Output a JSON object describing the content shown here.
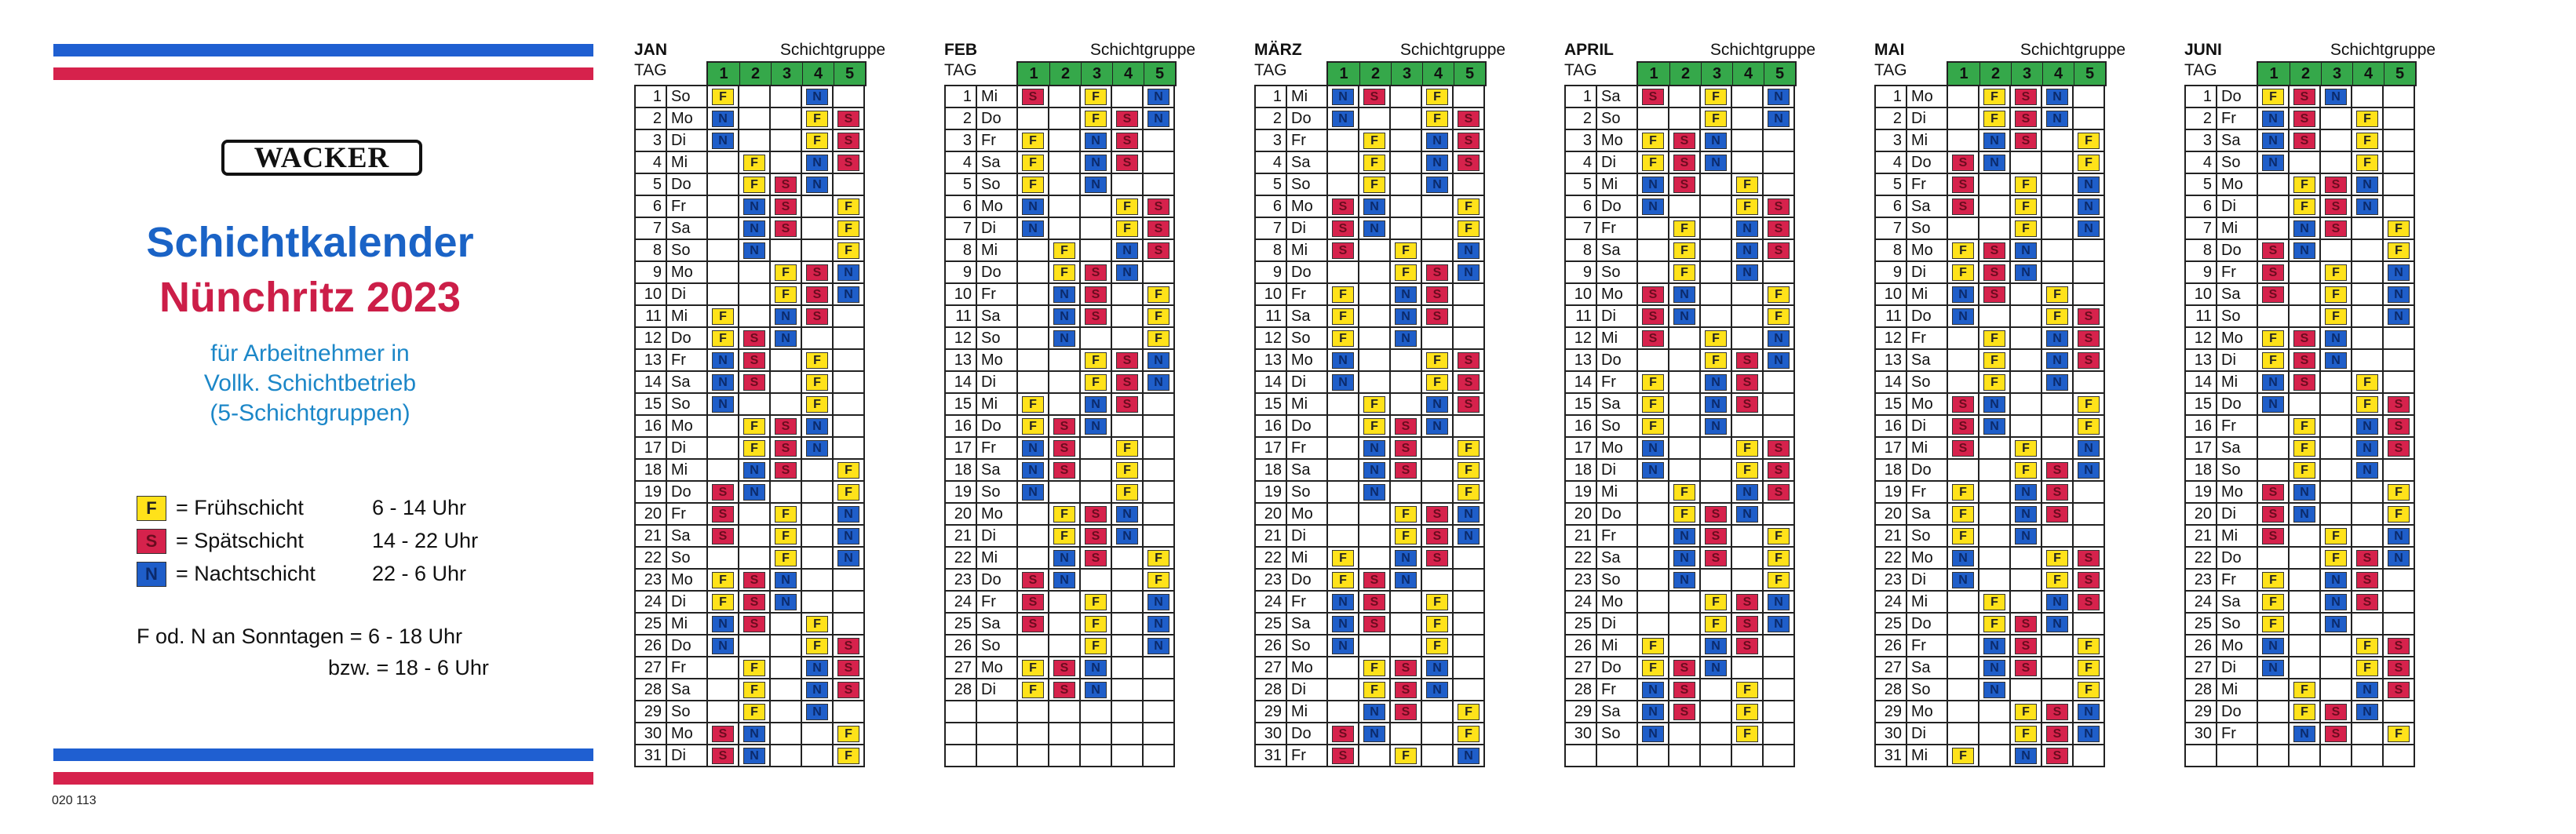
{
  "info": {
    "logo": "WACKER",
    "title_line1": "Schichtkalender",
    "title_line2": "Nünchritz 2023",
    "subtitle_lines": [
      "für Arbeitnehmer in",
      "Vollk. Schichtbetrieb",
      "(5-Schichtgruppen)"
    ],
    "legend": [
      {
        "code": "F",
        "label": "= Frühschicht",
        "time": "6 - 14 Uhr"
      },
      {
        "code": "S",
        "label": "= Spätschicht",
        "time": "14 - 22 Uhr"
      },
      {
        "code": "N",
        "label": "= Nachtschicht",
        "time": "22 -  6 Uhr"
      }
    ],
    "note_line1": "F od. N an Sonntagen = 6 - 18 Uhr",
    "note_line2": "bzw. = 18 - 6 Uhr",
    "code": "020 113"
  },
  "colors": {
    "F": "#ffe21a",
    "S": "#d6224c",
    "N": "#1f5ec9",
    "group_header": "#35a84a",
    "stripe_blue": "#1f5fd1",
    "stripe_red": "#d6224c"
  },
  "table_labels": {
    "tag": "TAG",
    "group": "Schichtgruppe",
    "group_numbers": [
      "1",
      "2",
      "3",
      "4",
      "5"
    ]
  },
  "months": [
    {
      "name": "JAN",
      "days": [
        {
          "d": "1",
          "wd": "So",
          "sh": "F--N-"
        },
        {
          "d": "2",
          "wd": "Mo",
          "sh": "N--FS"
        },
        {
          "d": "3",
          "wd": "Di",
          "sh": "N--FS"
        },
        {
          "d": "4",
          "wd": "Mi",
          "sh": "-F-NS"
        },
        {
          "d": "5",
          "wd": "Do",
          "sh": "-FSN-"
        },
        {
          "d": "6",
          "wd": "Fr",
          "sh": "-NS-F"
        },
        {
          "d": "7",
          "wd": "Sa",
          "sh": "-NS-F"
        },
        {
          "d": "8",
          "wd": "So",
          "sh": "-N--F"
        },
        {
          "d": "9",
          "wd": "Mo",
          "sh": "--FSN"
        },
        {
          "d": "10",
          "wd": "Di",
          "sh": "--FSN"
        },
        {
          "d": "11",
          "wd": "Mi",
          "sh": "F-NS-"
        },
        {
          "d": "12",
          "wd": "Do",
          "sh": "FSN--"
        },
        {
          "d": "13",
          "wd": "Fr",
          "sh": "NS-F-"
        },
        {
          "d": "14",
          "wd": "Sa",
          "sh": "NS-F-"
        },
        {
          "d": "15",
          "wd": "So",
          "sh": "N--F-"
        },
        {
          "d": "16",
          "wd": "Mo",
          "sh": "-FSN-"
        },
        {
          "d": "17",
          "wd": "Di",
          "sh": "-FSN-"
        },
        {
          "d": "18",
          "wd": "Mi",
          "sh": "-NS-F"
        },
        {
          "d": "19",
          "wd": "Do",
          "sh": "SN--F"
        },
        {
          "d": "20",
          "wd": "Fr",
          "sh": "S-F-N"
        },
        {
          "d": "21",
          "wd": "Sa",
          "sh": "S-F-N"
        },
        {
          "d": "22",
          "wd": "So",
          "sh": "--F-N"
        },
        {
          "d": "23",
          "wd": "Mo",
          "sh": "FSN--"
        },
        {
          "d": "24",
          "wd": "Di",
          "sh": "FSN--"
        },
        {
          "d": "25",
          "wd": "Mi",
          "sh": "NS-F-"
        },
        {
          "d": "26",
          "wd": "Do",
          "sh": "N--FS"
        },
        {
          "d": "27",
          "wd": "Fr",
          "sh": "-F-NS"
        },
        {
          "d": "28",
          "wd": "Sa",
          "sh": "-F-NS"
        },
        {
          "d": "29",
          "wd": "So",
          "sh": "-F-N-"
        },
        {
          "d": "30",
          "wd": "Mo",
          "sh": "SN--F"
        },
        {
          "d": "31",
          "wd": "Di",
          "sh": "SN--F"
        }
      ]
    },
    {
      "name": "FEB",
      "days": [
        {
          "d": "1",
          "wd": "Mi",
          "sh": "S-F-N"
        },
        {
          "d": "2",
          "wd": "Do",
          "sh": "--FSN"
        },
        {
          "d": "3",
          "wd": "Fr",
          "sh": "F-NS-"
        },
        {
          "d": "4",
          "wd": "Sa",
          "sh": "F-NS-"
        },
        {
          "d": "5",
          "wd": "So",
          "sh": "F-N--"
        },
        {
          "d": "6",
          "wd": "Mo",
          "sh": "N--FS"
        },
        {
          "d": "7",
          "wd": "Di",
          "sh": "N--FS"
        },
        {
          "d": "8",
          "wd": "Mi",
          "sh": "-F-NS"
        },
        {
          "d": "9",
          "wd": "Do",
          "sh": "-FSN-"
        },
        {
          "d": "10",
          "wd": "Fr",
          "sh": "-NS-F"
        },
        {
          "d": "11",
          "wd": "Sa",
          "sh": "-NS-F"
        },
        {
          "d": "12",
          "wd": "So",
          "sh": "-N--F"
        },
        {
          "d": "13",
          "wd": "Mo",
          "sh": "--FSN"
        },
        {
          "d": "14",
          "wd": "Di",
          "sh": "--FSN"
        },
        {
          "d": "15",
          "wd": "Mi",
          "sh": "F-NS-"
        },
        {
          "d": "16",
          "wd": "Do",
          "sh": "FSN--"
        },
        {
          "d": "17",
          "wd": "Fr",
          "sh": "NS-F-"
        },
        {
          "d": "18",
          "wd": "Sa",
          "sh": "NS-F-"
        },
        {
          "d": "19",
          "wd": "So",
          "sh": "N--F-"
        },
        {
          "d": "20",
          "wd": "Mo",
          "sh": "-FSN-"
        },
        {
          "d": "21",
          "wd": "Di",
          "sh": "-FSN-"
        },
        {
          "d": "22",
          "wd": "Mi",
          "sh": "-NS-F"
        },
        {
          "d": "23",
          "wd": "Do",
          "sh": "SN--F"
        },
        {
          "d": "24",
          "wd": "Fr",
          "sh": "S-F-N"
        },
        {
          "d": "25",
          "wd": "Sa",
          "sh": "S-F-N"
        },
        {
          "d": "26",
          "wd": "So",
          "sh": "--F-N"
        },
        {
          "d": "27",
          "wd": "Mo",
          "sh": "FSN--"
        },
        {
          "d": "28",
          "wd": "Di",
          "sh": "FSN--"
        }
      ]
    },
    {
      "name": "MÄRZ",
      "days": [
        {
          "d": "1",
          "wd": "Mi",
          "sh": "NS-F-"
        },
        {
          "d": "2",
          "wd": "Do",
          "sh": "N--FS"
        },
        {
          "d": "3",
          "wd": "Fr",
          "sh": "-F-NS"
        },
        {
          "d": "4",
          "wd": "Sa",
          "sh": "-F-NS"
        },
        {
          "d": "5",
          "wd": "So",
          "sh": "-F-N-"
        },
        {
          "d": "6",
          "wd": "Mo",
          "sh": "SN--F"
        },
        {
          "d": "7",
          "wd": "Di",
          "sh": "SN--F"
        },
        {
          "d": "8",
          "wd": "Mi",
          "sh": "S-F-N"
        },
        {
          "d": "9",
          "wd": "Do",
          "sh": "--FSN"
        },
        {
          "d": "10",
          "wd": "Fr",
          "sh": "F-NS-"
        },
        {
          "d": "11",
          "wd": "Sa",
          "sh": "F-NS-"
        },
        {
          "d": "12",
          "wd": "So",
          "sh": "F-N--"
        },
        {
          "d": "13",
          "wd": "Mo",
          "sh": "N--FS"
        },
        {
          "d": "14",
          "wd": "Di",
          "sh": "N--FS"
        },
        {
          "d": "15",
          "wd": "Mi",
          "sh": "-F-NS"
        },
        {
          "d": "16",
          "wd": "Do",
          "sh": "-FSN-"
        },
        {
          "d": "17",
          "wd": "Fr",
          "sh": "-NS-F"
        },
        {
          "d": "18",
          "wd": "Sa",
          "sh": "-NS-F"
        },
        {
          "d": "19",
          "wd": "So",
          "sh": "-N--F"
        },
        {
          "d": "20",
          "wd": "Mo",
          "sh": "--FSN"
        },
        {
          "d": "21",
          "wd": "Di",
          "sh": "--FSN"
        },
        {
          "d": "22",
          "wd": "Mi",
          "sh": "F-NS-"
        },
        {
          "d": "23",
          "wd": "Do",
          "sh": "FSN--"
        },
        {
          "d": "24",
          "wd": "Fr",
          "sh": "NS-F-"
        },
        {
          "d": "25",
          "wd": "Sa",
          "sh": "NS-F-"
        },
        {
          "d": "26",
          "wd": "So",
          "sh": "N--F-"
        },
        {
          "d": "27",
          "wd": "Mo",
          "sh": "-FSN-"
        },
        {
          "d": "28",
          "wd": "Di",
          "sh": "-FSN-"
        },
        {
          "d": "29",
          "wd": "Mi",
          "sh": "-NS-F"
        },
        {
          "d": "30",
          "wd": "Do",
          "sh": "SN--F"
        },
        {
          "d": "31",
          "wd": "Fr",
          "sh": "S-F-N"
        }
      ]
    },
    {
      "name": "APRIL",
      "days": [
        {
          "d": "1",
          "wd": "Sa",
          "sh": "S-F-N"
        },
        {
          "d": "2",
          "wd": "So",
          "sh": "--F-N"
        },
        {
          "d": "3",
          "wd": "Mo",
          "sh": "FSN--"
        },
        {
          "d": "4",
          "wd": "Di",
          "sh": "FSN--"
        },
        {
          "d": "5",
          "wd": "Mi",
          "sh": "NS-F-"
        },
        {
          "d": "6",
          "wd": "Do",
          "sh": "N--FS"
        },
        {
          "d": "7",
          "wd": "Fr",
          "sh": "-F-NS"
        },
        {
          "d": "8",
          "wd": "Sa",
          "sh": "-F-NS"
        },
        {
          "d": "9",
          "wd": "So",
          "sh": "-F-N-"
        },
        {
          "d": "10",
          "wd": "Mo",
          "sh": "SN--F"
        },
        {
          "d": "11",
          "wd": "Di",
          "sh": "SN--F"
        },
        {
          "d": "12",
          "wd": "Mi",
          "sh": "S-F-N"
        },
        {
          "d": "13",
          "wd": "Do",
          "sh": "--FSN"
        },
        {
          "d": "14",
          "wd": "Fr",
          "sh": "F-NS-"
        },
        {
          "d": "15",
          "wd": "Sa",
          "sh": "F-NS-"
        },
        {
          "d": "16",
          "wd": "So",
          "sh": "F-N--"
        },
        {
          "d": "17",
          "wd": "Mo",
          "sh": "N--FS"
        },
        {
          "d": "18",
          "wd": "Di",
          "sh": "N--FS"
        },
        {
          "d": "19",
          "wd": "Mi",
          "sh": "-F-NS"
        },
        {
          "d": "20",
          "wd": "Do",
          "sh": "-FSN-"
        },
        {
          "d": "21",
          "wd": "Fr",
          "sh": "-NS-F"
        },
        {
          "d": "22",
          "wd": "Sa",
          "sh": "-NS-F"
        },
        {
          "d": "23",
          "wd": "So",
          "sh": "-N--F"
        },
        {
          "d": "24",
          "wd": "Mo",
          "sh": "--FSN"
        },
        {
          "d": "25",
          "wd": "Di",
          "sh": "--FSN"
        },
        {
          "d": "26",
          "wd": "Mi",
          "sh": "F-NS-"
        },
        {
          "d": "27",
          "wd": "Do",
          "sh": "FSN--"
        },
        {
          "d": "28",
          "wd": "Fr",
          "sh": "NS-F-"
        },
        {
          "d": "29",
          "wd": "Sa",
          "sh": "NS-F-"
        },
        {
          "d": "30",
          "wd": "So",
          "sh": "N--F-"
        }
      ]
    },
    {
      "name": "MAI",
      "days": [
        {
          "d": "1",
          "wd": "Mo",
          "sh": "-FSN-"
        },
        {
          "d": "2",
          "wd": "Di",
          "sh": "-FSN-"
        },
        {
          "d": "3",
          "wd": "Mi",
          "sh": "-NS-F"
        },
        {
          "d": "4",
          "wd": "Do",
          "sh": "SN--F"
        },
        {
          "d": "5",
          "wd": "Fr",
          "sh": "S-F-N"
        },
        {
          "d": "6",
          "wd": "Sa",
          "sh": "S-F-N"
        },
        {
          "d": "7",
          "wd": "So",
          "sh": "--F-N"
        },
        {
          "d": "8",
          "wd": "Mo",
          "sh": "FSN--"
        },
        {
          "d": "9",
          "wd": "Di",
          "sh": "FSN--"
        },
        {
          "d": "10",
          "wd": "Mi",
          "sh": "NS-F-"
        },
        {
          "d": "11",
          "wd": "Do",
          "sh": "N--FS"
        },
        {
          "d": "12",
          "wd": "Fr",
          "sh": "-F-NS"
        },
        {
          "d": "13",
          "wd": "Sa",
          "sh": "-F-NS"
        },
        {
          "d": "14",
          "wd": "So",
          "sh": "-F-N-"
        },
        {
          "d": "15",
          "wd": "Mo",
          "sh": "SN--F"
        },
        {
          "d": "16",
          "wd": "Di",
          "sh": "SN--F"
        },
        {
          "d": "17",
          "wd": "Mi",
          "sh": "S-F-N"
        },
        {
          "d": "18",
          "wd": "Do",
          "sh": "--FSN"
        },
        {
          "d": "19",
          "wd": "Fr",
          "sh": "F-NS-"
        },
        {
          "d": "20",
          "wd": "Sa",
          "sh": "F-NS-"
        },
        {
          "d": "21",
          "wd": "So",
          "sh": "F-N--"
        },
        {
          "d": "22",
          "wd": "Mo",
          "sh": "N--FS"
        },
        {
          "d": "23",
          "wd": "Di",
          "sh": "N--FS"
        },
        {
          "d": "24",
          "wd": "Mi",
          "sh": "-F-NS"
        },
        {
          "d": "25",
          "wd": "Do",
          "sh": "-FSN-"
        },
        {
          "d": "26",
          "wd": "Fr",
          "sh": "-NS-F"
        },
        {
          "d": "27",
          "wd": "Sa",
          "sh": "-NS-F"
        },
        {
          "d": "28",
          "wd": "So",
          "sh": "-N--F"
        },
        {
          "d": "29",
          "wd": "Mo",
          "sh": "--FSN"
        },
        {
          "d": "30",
          "wd": "Di",
          "sh": "--FSN"
        },
        {
          "d": "31",
          "wd": "Mi",
          "sh": "F-NS-"
        }
      ]
    },
    {
      "name": "JUNI",
      "days": [
        {
          "d": "1",
          "wd": "Do",
          "sh": "FSN--"
        },
        {
          "d": "2",
          "wd": "Fr",
          "sh": "NS-F-"
        },
        {
          "d": "3",
          "wd": "Sa",
          "sh": "NS-F-"
        },
        {
          "d": "4",
          "wd": "So",
          "sh": "N--F-"
        },
        {
          "d": "5",
          "wd": "Mo",
          "sh": "-FSN-"
        },
        {
          "d": "6",
          "wd": "Di",
          "sh": "-FSN-"
        },
        {
          "d": "7",
          "wd": "Mi",
          "sh": "-NS-F"
        },
        {
          "d": "8",
          "wd": "Do",
          "sh": "SN--F"
        },
        {
          "d": "9",
          "wd": "Fr",
          "sh": "S-F-N"
        },
        {
          "d": "10",
          "wd": "Sa",
          "sh": "S-F-N"
        },
        {
          "d": "11",
          "wd": "So",
          "sh": "--F-N"
        },
        {
          "d": "12",
          "wd": "Mo",
          "sh": "FSN--"
        },
        {
          "d": "13",
          "wd": "Di",
          "sh": "FSN--"
        },
        {
          "d": "14",
          "wd": "Mi",
          "sh": "NS-F-"
        },
        {
          "d": "15",
          "wd": "Do",
          "sh": "N--FS"
        },
        {
          "d": "16",
          "wd": "Fr",
          "sh": "-F-NS"
        },
        {
          "d": "17",
          "wd": "Sa",
          "sh": "-F-NS"
        },
        {
          "d": "18",
          "wd": "So",
          "sh": "-F-N-"
        },
        {
          "d": "19",
          "wd": "Mo",
          "sh": "SN--F"
        },
        {
          "d": "20",
          "wd": "Di",
          "sh": "SN--F"
        },
        {
          "d": "21",
          "wd": "Mi",
          "sh": "S-F-N"
        },
        {
          "d": "22",
          "wd": "Do",
          "sh": "--FSN"
        },
        {
          "d": "23",
          "wd": "Fr",
          "sh": "F-NS-"
        },
        {
          "d": "24",
          "wd": "Sa",
          "sh": "F-NS-"
        },
        {
          "d": "25",
          "wd": "So",
          "sh": "F-N--"
        },
        {
          "d": "26",
          "wd": "Mo",
          "sh": "N--FS"
        },
        {
          "d": "27",
          "wd": "Di",
          "sh": "N--FS"
        },
        {
          "d": "28",
          "wd": "Mi",
          "sh": "-F-NS"
        },
        {
          "d": "29",
          "wd": "Do",
          "sh": "-FSN-"
        },
        {
          "d": "30",
          "wd": "Fr",
          "sh": "-NS-F"
        }
      ]
    }
  ]
}
